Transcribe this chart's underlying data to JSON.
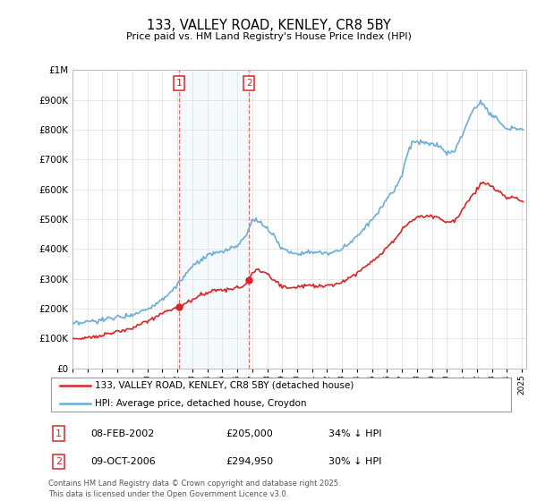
{
  "title": "133, VALLEY ROAD, KENLEY, CR8 5BY",
  "subtitle": "Price paid vs. HM Land Registry's House Price Index (HPI)",
  "hpi_color": "#6baed6",
  "price_color": "#d62728",
  "sale1_date": "08-FEB-2002",
  "sale1_price": 205000,
  "sale1_label": "34% ↓ HPI",
  "sale2_date": "09-OCT-2006",
  "sale2_price": 294950,
  "sale2_label": "30% ↓ HPI",
  "sale1_year": 2002.1,
  "sale2_year": 2006.78,
  "ylim_max": 1000000,
  "copyright": "Contains HM Land Registry data © Crown copyright and database right 2025.\nThis data is licensed under the Open Government Licence v3.0.",
  "legend_line1": "133, VALLEY ROAD, KENLEY, CR8 5BY (detached house)",
  "legend_line2": "HPI: Average price, detached house, Croydon",
  "hpi_control_years": [
    1995.0,
    1995.5,
    1996.0,
    1996.5,
    1997.0,
    1997.5,
    1998.0,
    1998.5,
    1999.0,
    1999.5,
    2000.0,
    2000.5,
    2001.0,
    2001.5,
    2002.0,
    2002.5,
    2003.0,
    2003.5,
    2004.0,
    2004.5,
    2005.0,
    2005.5,
    2006.0,
    2006.5,
    2007.0,
    2007.25,
    2007.5,
    2008.0,
    2008.5,
    2009.0,
    2009.5,
    2010.0,
    2010.5,
    2011.0,
    2011.5,
    2012.0,
    2012.5,
    2013.0,
    2013.5,
    2014.0,
    2014.5,
    2015.0,
    2015.5,
    2016.0,
    2016.5,
    2017.0,
    2017.25,
    2017.5,
    2017.75,
    2018.0,
    2018.5,
    2019.0,
    2019.5,
    2020.0,
    2020.5,
    2021.0,
    2021.5,
    2021.75,
    2022.0,
    2022.25,
    2022.5,
    2023.0,
    2023.5,
    2024.0,
    2024.5,
    2025.0
  ],
  "hpi_control_vals": [
    148000,
    150000,
    155000,
    158000,
    162000,
    167000,
    172000,
    175000,
    180000,
    190000,
    200000,
    215000,
    230000,
    255000,
    278000,
    310000,
    340000,
    360000,
    375000,
    385000,
    390000,
    400000,
    410000,
    440000,
    490000,
    500000,
    490000,
    470000,
    440000,
    400000,
    390000,
    385000,
    390000,
    390000,
    385000,
    385000,
    390000,
    400000,
    420000,
    445000,
    470000,
    500000,
    530000,
    570000,
    600000,
    650000,
    700000,
    740000,
    760000,
    760000,
    755000,
    750000,
    745000,
    720000,
    730000,
    780000,
    840000,
    870000,
    880000,
    890000,
    880000,
    850000,
    830000,
    800000,
    810000,
    800000
  ],
  "price_control_years": [
    1995.0,
    1995.5,
    1996.0,
    1996.5,
    1997.0,
    1997.5,
    1998.0,
    1998.5,
    1999.0,
    1999.5,
    2000.0,
    2000.5,
    2001.0,
    2001.5,
    2002.1,
    2002.5,
    2003.0,
    2003.5,
    2004.0,
    2004.5,
    2005.0,
    2005.5,
    2006.0,
    2006.5,
    2006.78,
    2007.0,
    2007.5,
    2008.0,
    2008.5,
    2009.0,
    2009.5,
    2010.0,
    2010.5,
    2011.0,
    2011.5,
    2012.0,
    2012.5,
    2013.0,
    2013.5,
    2014.0,
    2014.5,
    2015.0,
    2015.5,
    2016.0,
    2016.5,
    2017.0,
    2017.5,
    2018.0,
    2018.5,
    2019.0,
    2019.5,
    2020.0,
    2020.5,
    2021.0,
    2021.5,
    2022.0,
    2022.25,
    2022.5,
    2023.0,
    2023.5,
    2024.0,
    2024.5,
    2025.0
  ],
  "price_control_vals": [
    98000,
    100000,
    103000,
    107000,
    112000,
    118000,
    122000,
    128000,
    135000,
    145000,
    158000,
    172000,
    185000,
    195000,
    205000,
    215000,
    230000,
    245000,
    255000,
    260000,
    262000,
    265000,
    268000,
    278000,
    294950,
    325000,
    330000,
    315000,
    295000,
    275000,
    270000,
    272000,
    278000,
    278000,
    275000,
    278000,
    280000,
    290000,
    305000,
    320000,
    340000,
    360000,
    380000,
    405000,
    430000,
    465000,
    490000,
    505000,
    510000,
    510000,
    505000,
    490000,
    495000,
    530000,
    565000,
    600000,
    615000,
    625000,
    610000,
    590000,
    570000,
    575000,
    560000
  ]
}
